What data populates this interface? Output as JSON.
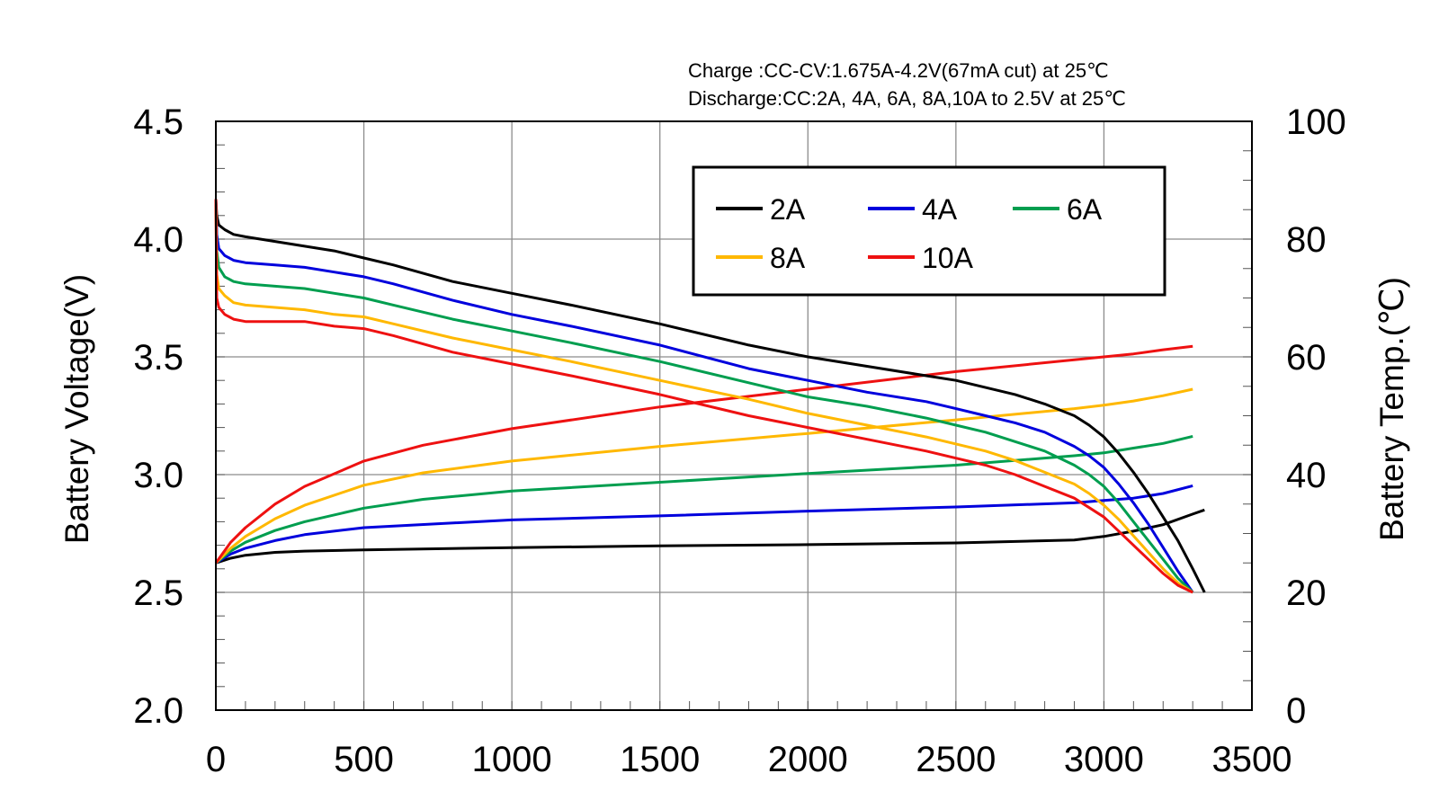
{
  "chart_data": {
    "type": "line",
    "title": "",
    "conditions": [
      "Charge :CC-CV:1.675A-4.2V(67mA cut) at 25℃",
      "Discharge:CC:2A, 4A, 6A, 8A,10A to 2.5V at 25℃"
    ],
    "xlabel": "",
    "ylabel": "Battery Voltage(V)",
    "y2label": "Battery Temp.(℃)",
    "xlim": [
      0,
      3500
    ],
    "ylim": [
      2.0,
      4.5
    ],
    "y2lim": [
      0,
      100
    ],
    "x_ticks": [
      "0",
      "500",
      "1000",
      "1500",
      "2000",
      "2500",
      "3000",
      "3500"
    ],
    "y_ticks": [
      "2.0",
      "2.5",
      "3.0",
      "3.5",
      "4.0",
      "4.5"
    ],
    "y2_ticks": [
      "0",
      "20",
      "40",
      "60",
      "80",
      "100"
    ],
    "grid": true,
    "legend": {
      "placement": "top-right",
      "columns": 3
    },
    "series": [
      {
        "name": "2A",
        "color": "#000000",
        "voltage": {
          "x": [
            0,
            3,
            10,
            30,
            60,
            100,
            200,
            300,
            400,
            500,
            600,
            800,
            1000,
            1200,
            1500,
            1800,
            2000,
            2200,
            2400,
            2500,
            2600,
            2700,
            2800,
            2900,
            2950,
            3000,
            3050,
            3100,
            3150,
            3200,
            3250,
            3300,
            3340
          ],
          "y": [
            4.17,
            4.1,
            4.06,
            4.04,
            4.02,
            4.01,
            3.99,
            3.97,
            3.95,
            3.92,
            3.89,
            3.82,
            3.77,
            3.72,
            3.64,
            3.55,
            3.5,
            3.46,
            3.42,
            3.4,
            3.37,
            3.34,
            3.3,
            3.25,
            3.21,
            3.16,
            3.09,
            3.01,
            2.92,
            2.82,
            2.72,
            2.6,
            2.5
          ]
        },
        "temp": {
          "x": [
            0,
            50,
            100,
            200,
            300,
            500,
            1000,
            1500,
            2000,
            2500,
            2900,
            3000,
            3100,
            3200,
            3300,
            3340
          ],
          "y": [
            25,
            25.8,
            26.3,
            26.8,
            27.0,
            27.2,
            27.6,
            27.9,
            28.1,
            28.4,
            28.9,
            29.5,
            30.4,
            31.5,
            33.3,
            34.0
          ]
        }
      },
      {
        "name": "4A",
        "color": "#0000dd",
        "voltage": {
          "x": [
            0,
            3,
            10,
            30,
            60,
            100,
            200,
            300,
            400,
            500,
            600,
            800,
            1000,
            1200,
            1500,
            1800,
            2000,
            2200,
            2400,
            2500,
            2600,
            2700,
            2800,
            2900,
            2950,
            3000,
            3050,
            3100,
            3150,
            3200,
            3250,
            3300
          ],
          "y": [
            4.17,
            4.02,
            3.96,
            3.93,
            3.91,
            3.9,
            3.89,
            3.88,
            3.86,
            3.84,
            3.81,
            3.74,
            3.68,
            3.63,
            3.55,
            3.45,
            3.4,
            3.35,
            3.31,
            3.28,
            3.25,
            3.22,
            3.18,
            3.12,
            3.08,
            3.03,
            2.96,
            2.88,
            2.79,
            2.69,
            2.59,
            2.5
          ]
        },
        "temp": {
          "x": [
            0,
            50,
            100,
            200,
            300,
            500,
            1000,
            1500,
            2000,
            2500,
            2900,
            3000,
            3100,
            3200,
            3300
          ],
          "y": [
            25,
            26.5,
            27.5,
            28.8,
            29.8,
            31.0,
            32.3,
            33.0,
            33.8,
            34.5,
            35.2,
            35.6,
            36.0,
            36.8,
            38.1
          ]
        }
      },
      {
        "name": "6A",
        "color": "#009e4f",
        "voltage": {
          "x": [
            0,
            3,
            10,
            30,
            60,
            100,
            200,
            300,
            400,
            500,
            600,
            800,
            1000,
            1200,
            1500,
            1800,
            2000,
            2200,
            2400,
            2500,
            2600,
            2700,
            2800,
            2900,
            2950,
            3000,
            3050,
            3100,
            3150,
            3200,
            3250,
            3300
          ],
          "y": [
            4.17,
            3.95,
            3.88,
            3.84,
            3.82,
            3.81,
            3.8,
            3.79,
            3.77,
            3.75,
            3.72,
            3.66,
            3.61,
            3.56,
            3.48,
            3.39,
            3.33,
            3.29,
            3.24,
            3.21,
            3.18,
            3.14,
            3.1,
            3.04,
            3.0,
            2.95,
            2.88,
            2.8,
            2.72,
            2.64,
            2.56,
            2.5
          ]
        },
        "temp": {
          "x": [
            0,
            50,
            100,
            200,
            300,
            500,
            700,
            1000,
            1500,
            2000,
            2500,
            2900,
            3000,
            3100,
            3200,
            3300
          ],
          "y": [
            25,
            27.0,
            28.5,
            30.5,
            32.0,
            34.3,
            35.8,
            37.2,
            38.7,
            40.2,
            41.6,
            43.2,
            43.7,
            44.5,
            45.3,
            46.5
          ]
        }
      },
      {
        "name": "8A",
        "color": "#ffb800",
        "voltage": {
          "x": [
            0,
            3,
            10,
            30,
            60,
            100,
            200,
            300,
            400,
            500,
            600,
            800,
            1000,
            1200,
            1500,
            1800,
            2000,
            2200,
            2400,
            2500,
            2600,
            2700,
            2800,
            2900,
            2950,
            3000,
            3050,
            3100,
            3150,
            3200,
            3250,
            3300
          ],
          "y": [
            4.17,
            3.85,
            3.79,
            3.76,
            3.73,
            3.72,
            3.71,
            3.7,
            3.68,
            3.67,
            3.64,
            3.58,
            3.53,
            3.48,
            3.4,
            3.32,
            3.26,
            3.21,
            3.16,
            3.13,
            3.1,
            3.06,
            3.01,
            2.96,
            2.92,
            2.87,
            2.81,
            2.74,
            2.67,
            2.6,
            2.54,
            2.5
          ]
        },
        "temp": {
          "x": [
            0,
            50,
            100,
            200,
            300,
            500,
            700,
            1000,
            1500,
            2000,
            2500,
            2900,
            3000,
            3100,
            3200,
            3300
          ],
          "y": [
            25,
            27.5,
            29.5,
            32.5,
            34.8,
            38.2,
            40.3,
            42.3,
            44.8,
            47.0,
            49.3,
            51.2,
            51.8,
            52.5,
            53.4,
            54.5
          ]
        }
      },
      {
        "name": "10A",
        "color": "#ee1111",
        "voltage": {
          "x": [
            0,
            3,
            10,
            30,
            60,
            100,
            200,
            300,
            400,
            500,
            600,
            800,
            1000,
            1200,
            1500,
            1800,
            2000,
            2200,
            2400,
            2500,
            2600,
            2700,
            2800,
            2900,
            2950,
            3000,
            3050,
            3100,
            3150,
            3200,
            3250,
            3300
          ],
          "y": [
            4.17,
            3.75,
            3.71,
            3.68,
            3.66,
            3.65,
            3.65,
            3.65,
            3.63,
            3.62,
            3.59,
            3.52,
            3.47,
            3.42,
            3.34,
            3.25,
            3.2,
            3.15,
            3.1,
            3.07,
            3.04,
            3.0,
            2.95,
            2.9,
            2.86,
            2.82,
            2.76,
            2.7,
            2.64,
            2.58,
            2.53,
            2.5
          ]
        },
        "temp": {
          "x": [
            0,
            50,
            100,
            200,
            300,
            500,
            700,
            1000,
            1500,
            2000,
            2500,
            2900,
            3000,
            3100,
            3200,
            3300
          ],
          "y": [
            25,
            28.5,
            31.0,
            35.0,
            38.0,
            42.3,
            45.0,
            47.8,
            51.5,
            54.5,
            57.5,
            59.5,
            60.0,
            60.5,
            61.2,
            61.8
          ]
        }
      }
    ]
  }
}
